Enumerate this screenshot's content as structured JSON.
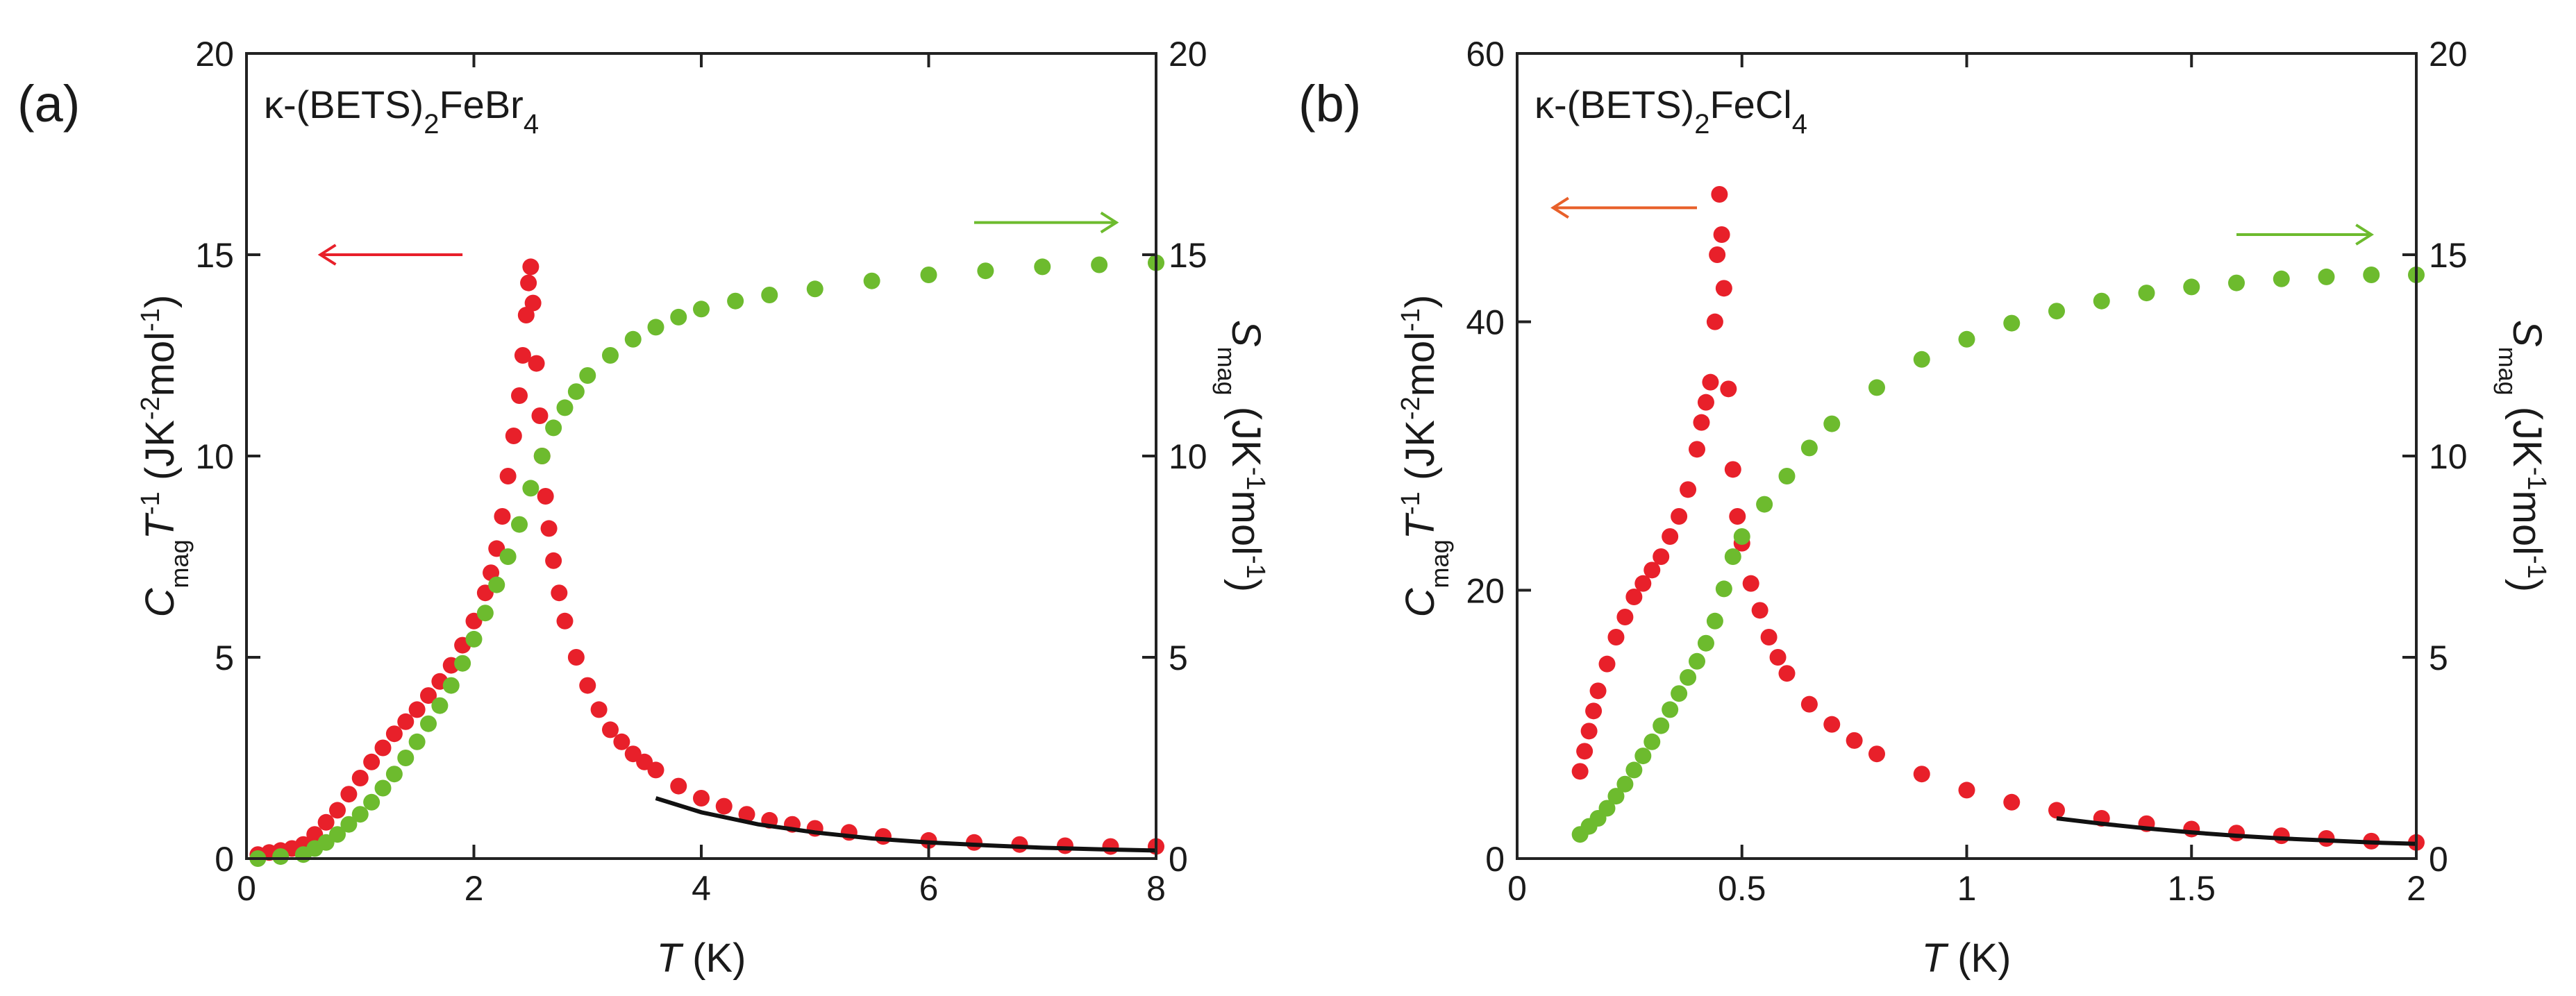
{
  "chart_data": [
    {
      "type": "scatter",
      "panel_label": "(a)",
      "compound": {
        "prefix": "κ-(BETS)",
        "sub1": "2",
        "mid": "FeBr",
        "sub2": "4"
      },
      "xlabel": {
        "italic": "T",
        "rest": " (K)"
      },
      "ylabel_left": {
        "c": "C",
        "c_sub": "mag",
        "t": "T",
        "t_sup": "-1",
        "u1": " (JK",
        "u1_sup": "-2",
        "u2": "mol",
        "u2_sup": "-1",
        "u3": ")"
      },
      "ylabel_right": {
        "s": "S",
        "s_sub": "mag",
        "u1": " (JK",
        "u1_sup": "-1",
        "u2": "mol",
        "u2_sup": "-1",
        "u3": ")"
      },
      "xlim": [
        0,
        8
      ],
      "ylim_left": [
        0,
        20
      ],
      "ylim_right": [
        0,
        20
      ],
      "xticks": [
        "0",
        "2",
        "4",
        "6",
        "8"
      ],
      "xtick_values": [
        0,
        2,
        4,
        6,
        8
      ],
      "yticks_left": [
        "0",
        "5",
        "10",
        "15",
        "20"
      ],
      "ytick_left_values": [
        0,
        5,
        10,
        15,
        20
      ],
      "yticks_right": [
        "0",
        "5",
        "10",
        "15",
        "20"
      ],
      "ytick_right_values": [
        0,
        5,
        10,
        15,
        20
      ],
      "colors": {
        "cmag": "#e8202a",
        "smag": "#6dbb2e",
        "fit": "#111111",
        "arrow_left": "#e8202a",
        "arrow_right": "#6dbb2e"
      },
      "arrows": {
        "left": {
          "x_from": 1.9,
          "x_to": 0.65,
          "y": 15.0,
          "axis": "left"
        },
        "right": {
          "x_from": 6.4,
          "x_to": 7.65,
          "y": 15.8,
          "axis": "right"
        }
      },
      "series": [
        {
          "name": "C_mag T^-1",
          "axis": "left",
          "x": [
            0.1,
            0.2,
            0.3,
            0.4,
            0.5,
            0.6,
            0.7,
            0.8,
            0.9,
            1.0,
            1.1,
            1.2,
            1.3,
            1.4,
            1.5,
            1.6,
            1.7,
            1.8,
            1.9,
            2.0,
            2.1,
            2.15,
            2.2,
            2.25,
            2.3,
            2.35,
            2.4,
            2.43,
            2.46,
            2.48,
            2.5,
            2.52,
            2.55,
            2.58,
            2.6,
            2.63,
            2.66,
            2.7,
            2.75,
            2.8,
            2.9,
            3.0,
            3.1,
            3.2,
            3.3,
            3.4,
            3.5,
            3.6,
            3.8,
            4.0,
            4.2,
            4.4,
            4.6,
            4.8,
            5.0,
            5.3,
            5.6,
            6.0,
            6.4,
            6.8,
            7.2,
            7.6,
            8.0
          ],
          "y": [
            0.1,
            0.15,
            0.2,
            0.25,
            0.35,
            0.6,
            0.9,
            1.2,
            1.6,
            2.0,
            2.4,
            2.75,
            3.1,
            3.4,
            3.7,
            4.05,
            4.4,
            4.8,
            5.3,
            5.9,
            6.6,
            7.1,
            7.7,
            8.5,
            9.5,
            10.5,
            11.5,
            12.5,
            13.5,
            14.3,
            14.7,
            13.8,
            12.3,
            11.0,
            10.0,
            9.0,
            8.2,
            7.4,
            6.6,
            5.9,
            5.0,
            4.3,
            3.7,
            3.2,
            2.9,
            2.6,
            2.4,
            2.2,
            1.8,
            1.5,
            1.3,
            1.1,
            0.95,
            0.85,
            0.75,
            0.65,
            0.55,
            0.45,
            0.4,
            0.35,
            0.32,
            0.3,
            0.3
          ]
        },
        {
          "name": "S_mag",
          "axis": "right",
          "x": [
            0.1,
            0.3,
            0.5,
            0.6,
            0.7,
            0.8,
            0.9,
            1.0,
            1.1,
            1.2,
            1.3,
            1.4,
            1.5,
            1.6,
            1.7,
            1.8,
            1.9,
            2.0,
            2.1,
            2.2,
            2.3,
            2.4,
            2.5,
            2.6,
            2.7,
            2.8,
            2.9,
            3.0,
            3.2,
            3.4,
            3.6,
            3.8,
            4.0,
            4.3,
            4.6,
            5.0,
            5.5,
            6.0,
            6.5,
            7.0,
            7.5,
            8.0
          ],
          "y": [
            0.0,
            0.05,
            0.1,
            0.25,
            0.4,
            0.6,
            0.85,
            1.1,
            1.4,
            1.75,
            2.1,
            2.5,
            2.9,
            3.35,
            3.8,
            4.3,
            4.85,
            5.45,
            6.1,
            6.8,
            7.5,
            8.3,
            9.2,
            10.0,
            10.7,
            11.2,
            11.6,
            12.0,
            12.5,
            12.9,
            13.2,
            13.45,
            13.65,
            13.85,
            14.0,
            14.15,
            14.35,
            14.5,
            14.6,
            14.7,
            14.75,
            14.8
          ]
        },
        {
          "name": "fit",
          "axis": "left",
          "style": "line",
          "x": [
            3.6,
            4.0,
            4.5,
            5.0,
            5.5,
            6.0,
            6.5,
            7.0,
            7.5,
            8.0
          ],
          "y": [
            1.5,
            1.15,
            0.85,
            0.65,
            0.5,
            0.4,
            0.33,
            0.27,
            0.23,
            0.2
          ]
        }
      ]
    },
    {
      "type": "scatter",
      "panel_label": "(b)",
      "compound": {
        "prefix": "κ-(BETS)",
        "sub1": "2",
        "mid": "FeCl",
        "sub2": "4"
      },
      "xlabel": {
        "italic": "T",
        "rest": " (K)"
      },
      "ylabel_left": {
        "c": "C",
        "c_sub": "mag",
        "t": "T",
        "t_sup": "-1",
        "u1": " (JK",
        "u1_sup": "-2",
        "u2": "mol",
        "u2_sup": "-1",
        "u3": ")"
      },
      "ylabel_right": {
        "s": "S",
        "s_sub": "mag",
        "u1": " (JK",
        "u1_sup": "-1",
        "u2": "mol",
        "u2_sup": "-1",
        "u3": ")"
      },
      "xlim": [
        0,
        2
      ],
      "ylim_left": [
        0,
        60
      ],
      "ylim_right": [
        0,
        20
      ],
      "xticks": [
        "0",
        "0.5",
        "1",
        "1.5",
        "2"
      ],
      "xtick_values": [
        0,
        0.5,
        1,
        1.5,
        2
      ],
      "yticks_left": [
        "0",
        "20",
        "40",
        "60"
      ],
      "ytick_left_values": [
        0,
        20,
        40,
        60
      ],
      "yticks_right": [
        "0",
        "5",
        "10",
        "15",
        "20"
      ],
      "ytick_right_values": [
        0,
        5,
        10,
        15,
        20
      ],
      "colors": {
        "cmag": "#e8202a",
        "smag": "#6dbb2e",
        "fit": "#111111",
        "arrow_left": "#e8602a",
        "arrow_right": "#6dbb2e"
      },
      "arrows": {
        "left": {
          "x_from": 0.4,
          "x_to": 0.08,
          "y": 48.5,
          "axis": "left"
        },
        "right": {
          "x_from": 1.6,
          "x_to": 1.9,
          "y": 15.5,
          "axis": "right"
        }
      },
      "series": [
        {
          "name": "C_mag T^-1",
          "axis": "left",
          "x": [
            0.14,
            0.15,
            0.16,
            0.17,
            0.18,
            0.2,
            0.22,
            0.24,
            0.26,
            0.28,
            0.3,
            0.32,
            0.34,
            0.36,
            0.38,
            0.4,
            0.41,
            0.42,
            0.43,
            0.44,
            0.445,
            0.45,
            0.455,
            0.46,
            0.47,
            0.48,
            0.49,
            0.5,
            0.52,
            0.54,
            0.56,
            0.58,
            0.6,
            0.65,
            0.7,
            0.75,
            0.8,
            0.9,
            1.0,
            1.1,
            1.2,
            1.3,
            1.4,
            1.5,
            1.6,
            1.7,
            1.8,
            1.9,
            2.0
          ],
          "y": [
            6.5,
            8.0,
            9.5,
            11.0,
            12.5,
            14.5,
            16.5,
            18.0,
            19.5,
            20.5,
            21.5,
            22.5,
            24.0,
            25.5,
            27.5,
            30.5,
            32.5,
            34.0,
            35.5,
            40.0,
            45.0,
            49.5,
            46.5,
            42.5,
            35.0,
            29.0,
            25.5,
            23.5,
            20.5,
            18.5,
            16.5,
            15.0,
            13.8,
            11.5,
            10.0,
            8.8,
            7.8,
            6.3,
            5.1,
            4.2,
            3.6,
            3.0,
            2.6,
            2.2,
            1.9,
            1.7,
            1.5,
            1.3,
            1.2
          ]
        },
        {
          "name": "S_mag",
          "axis": "right",
          "x": [
            0.14,
            0.16,
            0.18,
            0.2,
            0.22,
            0.24,
            0.26,
            0.28,
            0.3,
            0.32,
            0.34,
            0.36,
            0.38,
            0.4,
            0.42,
            0.44,
            0.46,
            0.48,
            0.5,
            0.55,
            0.6,
            0.65,
            0.7,
            0.8,
            0.9,
            1.0,
            1.1,
            1.2,
            1.3,
            1.4,
            1.5,
            1.6,
            1.7,
            1.8,
            1.9,
            2.0
          ],
          "y": [
            0.6,
            0.8,
            1.0,
            1.25,
            1.55,
            1.85,
            2.2,
            2.55,
            2.9,
            3.3,
            3.7,
            4.1,
            4.5,
            4.9,
            5.35,
            5.9,
            6.7,
            7.5,
            8.0,
            8.8,
            9.5,
            10.2,
            10.8,
            11.7,
            12.4,
            12.9,
            13.3,
            13.6,
            13.85,
            14.05,
            14.2,
            14.3,
            14.4,
            14.45,
            14.5,
            14.5
          ]
        },
        {
          "name": "fit",
          "axis": "left",
          "style": "line",
          "x": [
            1.2,
            1.3,
            1.4,
            1.5,
            1.6,
            1.7,
            1.8,
            1.9,
            2.0
          ],
          "y": [
            3.0,
            2.6,
            2.25,
            1.95,
            1.7,
            1.5,
            1.35,
            1.2,
            1.1
          ]
        }
      ]
    }
  ]
}
